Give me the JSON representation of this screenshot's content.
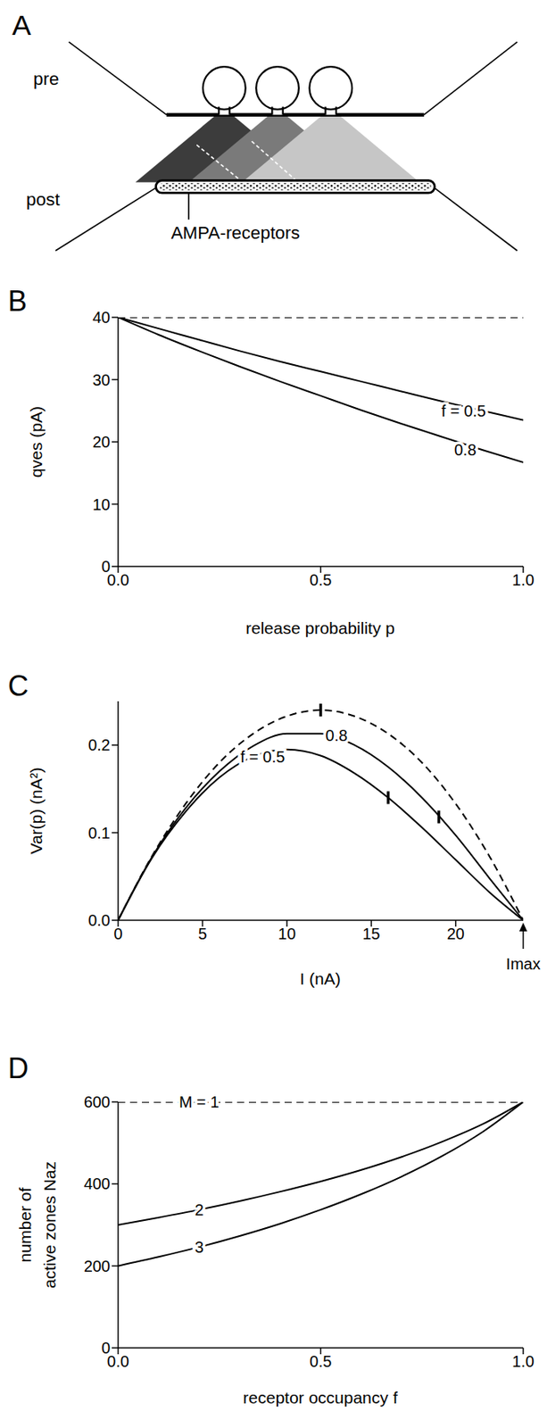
{
  "diagram": {
    "panel": "A",
    "pre_label": "pre",
    "post_label": "post",
    "receptor_label": "AMPA-receptors"
  },
  "chart_data": [
    {
      "panel": "B",
      "type": "line",
      "xlabel": "release probability p",
      "ylabel": "qves (pA)",
      "x": [
        0,
        0.1,
        0.2,
        0.3,
        0.4,
        0.5,
        0.6,
        0.7,
        0.8,
        0.9,
        1
      ],
      "xlim": [
        0,
        1
      ],
      "xticks": [
        {
          "value": 0,
          "label": "0.0"
        },
        {
          "value": 0.5,
          "label": "0.5"
        },
        {
          "value": 1,
          "label": "1.0"
        }
      ],
      "ylim": [
        0,
        40
      ],
      "yticks": [
        0,
        10,
        20,
        30,
        40
      ],
      "grid": false,
      "series": [
        {
          "color": "#000000",
          "line_style": "dashed",
          "values": [
            40,
            40,
            40,
            40,
            40,
            40,
            40,
            40,
            40,
            40,
            40
          ]
        },
        {
          "name": "f = 0.5",
          "color": "#000000",
          "line_style": "solid",
          "values": [
            40,
            38.2,
            36.4,
            34.6,
            32.9,
            31.3,
            29.7,
            28.1,
            26.5,
            25.0,
            23.5
          ]
        },
        {
          "name": "0.8",
          "color": "#000000",
          "line_style": "solid",
          "values": [
            40,
            37.2,
            34.6,
            32.1,
            29.7,
            27.4,
            25.1,
            22.9,
            20.8,
            18.7,
            16.7
          ]
        }
      ]
    },
    {
      "panel": "C",
      "type": "line",
      "xlabel": "I (nA)",
      "ylabel": "Var(p) (nA²)",
      "x": [
        0,
        2,
        4,
        6,
        8,
        10,
        12,
        14,
        16,
        18,
        20,
        22,
        24
      ],
      "xlim": [
        0,
        24
      ],
      "xticks": [
        0,
        5,
        10,
        15,
        20
      ],
      "ylim": [
        0,
        0.25
      ],
      "yticks": [
        {
          "value": 0,
          "label": "0.0"
        },
        {
          "value": 0.1,
          "label": "0.1"
        },
        {
          "value": 0.2,
          "label": "0.2"
        }
      ],
      "grid": false,
      "series": [
        {
          "color": "#000000",
          "line_style": "dashed",
          "values": [
            0,
            0.073,
            0.133,
            0.18,
            0.213,
            0.233,
            0.24,
            0.233,
            0.213,
            0.18,
            0.133,
            0.073,
            0
          ]
        },
        {
          "name": "0.8",
          "color": "#000000",
          "line_style": "solid",
          "values": [
            0,
            0.072,
            0.128,
            0.17,
            0.199,
            0.213,
            0.213,
            0.2,
            0.175,
            0.14,
            0.097,
            0.048,
            0
          ]
        },
        {
          "name": "f = 0.5",
          "color": "#000000",
          "line_style": "solid",
          "values": [
            0,
            0.071,
            0.124,
            0.163,
            0.187,
            0.195,
            0.188,
            0.168,
            0.14,
            0.106,
            0.069,
            0.032,
            0
          ]
        }
      ],
      "marks": [
        {
          "x": 12,
          "y": 0.24
        },
        {
          "x": 16,
          "y": 0.14
        },
        {
          "x": 19,
          "y": 0.118
        }
      ],
      "annotation": {
        "text": "Imax",
        "x": 24,
        "y": 0
      }
    },
    {
      "panel": "D",
      "type": "line",
      "xlabel": "receptor occupancy f",
      "ylabel": [
        "number of",
        "active zones Naz"
      ],
      "x": [
        0,
        0.1,
        0.2,
        0.3,
        0.4,
        0.5,
        0.6,
        0.7,
        0.8,
        0.9,
        1
      ],
      "xlim": [
        0,
        1
      ],
      "xticks": [
        {
          "value": 0,
          "label": "0.0"
        },
        {
          "value": 0.5,
          "label": "0.5"
        },
        {
          "value": 1,
          "label": "1.0"
        }
      ],
      "ylim": [
        0,
        600
      ],
      "yticks": [
        0,
        200,
        400,
        600
      ],
      "grid": false,
      "series": [
        {
          "name": "M = 1",
          "color": "#000000",
          "line_style": "dashed",
          "values": [
            600,
            600,
            600,
            600,
            600,
            600,
            600,
            600,
            600,
            600,
            600
          ]
        },
        {
          "name": "2",
          "color": "#000000",
          "line_style": "solid",
          "values": [
            300,
            318,
            337,
            358,
            381,
            406,
            434,
            466,
            503,
            546,
            600
          ]
        },
        {
          "name": "3",
          "color": "#000000",
          "line_style": "solid",
          "values": [
            200,
            222,
            246,
            273,
            303,
            337,
            375,
            418,
            468,
            527,
            600
          ]
        }
      ]
    }
  ]
}
